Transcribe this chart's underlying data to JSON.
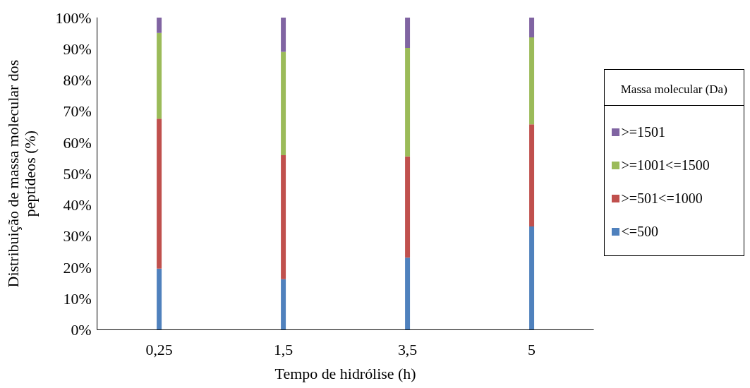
{
  "chart_data": {
    "type": "bar",
    "stacked": true,
    "xlabel": "Tempo de hidrólise (h)",
    "ylabel": "Distribuição de massa molecular dos peptídeos (%)",
    "legend_title": "Massa molecular (Da)",
    "legend": "right",
    "grid": false,
    "categories": [
      "0,25",
      "1,5",
      "3,5",
      "5"
    ],
    "ylim": [
      0,
      100
    ],
    "yticks": [
      {
        "value": 0,
        "label": "0%"
      },
      {
        "value": 10,
        "label": "10%"
      },
      {
        "value": 20,
        "label": "20%"
      },
      {
        "value": 30,
        "label": "30%"
      },
      {
        "value": 40,
        "label": "40%"
      },
      {
        "value": 50,
        "label": "50%"
      },
      {
        "value": 60,
        "label": "60%"
      },
      {
        "value": 70,
        "label": "70%"
      },
      {
        "value": 80,
        "label": "80%"
      },
      {
        "value": 90,
        "label": "90%"
      },
      {
        "value": 100,
        "label": "100%"
      }
    ],
    "series": [
      {
        "name": "<=500",
        "color": "#4f81bd",
        "values": [
          19.6,
          16.2,
          23.1,
          33.1
        ]
      },
      {
        "name": ">=501<=1000",
        "color": "#c0504d",
        "values": [
          48.0,
          39.7,
          32.4,
          32.7
        ]
      },
      {
        "name": ">=1001<=1500",
        "color": "#9bbb59",
        "values": [
          27.4,
          33.1,
          34.7,
          27.8
        ]
      },
      {
        "name": ">=1501",
        "color": "#8064a2",
        "values": [
          5.0,
          11.0,
          9.8,
          6.4
        ]
      }
    ]
  }
}
